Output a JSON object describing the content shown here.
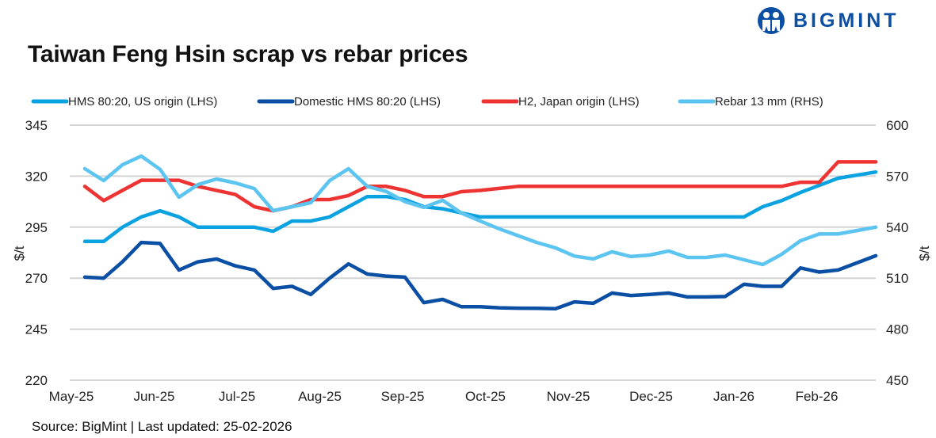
{
  "brand": {
    "name": "BIGMINT"
  },
  "chart_data": {
    "type": "line",
    "title": "Taiwan Feng Hsin scrap vs rebar prices",
    "source": "Source: BigMint |  Last updated: 25-02-2026",
    "ylabel_left": "$/t",
    "ylabel_right": "$/t",
    "ylim_left": [
      220,
      345
    ],
    "ylim_right": [
      450,
      600
    ],
    "yticks_left": [
      "345",
      "320",
      "295",
      "270",
      "245",
      "220"
    ],
    "yticks_right": [
      "600",
      "570",
      "540",
      "510",
      "480",
      "450"
    ],
    "xticks": [
      "May-25",
      "Jun-25",
      "Jul-25",
      "Aug-25",
      "Sep-25",
      "Oct-25",
      "Nov-25",
      "Dec-25",
      "Jan-26",
      "Feb-26"
    ],
    "grid": true,
    "legend_position": "top",
    "series": [
      {
        "name": "HMS 80:20, US origin (LHS)",
        "axis": "left",
        "color": "#0aa2e0",
        "values": [
          288,
          288,
          295,
          300,
          303,
          300,
          295,
          295,
          295,
          295,
          293,
          298,
          298,
          300,
          305,
          310,
          310,
          308.5,
          305,
          304,
          302,
          300,
          300,
          300,
          300,
          300,
          300,
          300,
          300,
          300,
          300,
          300,
          300,
          300,
          300,
          300,
          305,
          308,
          312,
          315.5,
          319,
          320.5,
          322
        ]
      },
      {
        "name": "Domestic HMS 80:20 (LHS)",
        "axis": "left",
        "color": "#0a4fa3",
        "values": [
          270.5,
          270,
          278,
          287.5,
          287,
          274,
          278,
          279.4,
          276,
          274,
          265,
          266,
          262,
          270,
          277,
          272,
          271,
          270.5,
          258,
          259.6,
          256,
          256,
          255.5,
          255.3,
          255.2,
          255,
          258.4,
          257.7,
          262.7,
          261.5,
          262,
          262.7,
          260.8,
          260.8,
          261,
          267,
          266,
          266,
          275,
          273,
          274,
          277.5,
          281
        ]
      },
      {
        "name": "H2, Japan origin (LHS)",
        "axis": "left",
        "color": "#ee3432",
        "values": [
          315,
          308,
          313,
          318,
          318,
          318,
          315,
          313,
          311,
          305,
          303,
          305,
          308.5,
          308.5,
          310.5,
          315,
          315,
          313,
          310,
          310,
          312.4,
          313,
          314,
          315,
          315,
          315,
          315,
          315,
          315,
          315,
          315,
          315,
          315,
          315,
          315,
          315,
          315,
          315,
          317,
          317,
          327,
          327,
          327
        ]
      },
      {
        "name": "Rebar 13 mm (RHS)",
        "axis": "right",
        "color": "#5bc4f1",
        "values": [
          574.4,
          567.4,
          576.7,
          581.8,
          574,
          557.6,
          565,
          568.3,
          566,
          562.7,
          549.7,
          552,
          554.4,
          567.4,
          574.4,
          564,
          561,
          555,
          551.6,
          555.8,
          548.3,
          543.6,
          539,
          535,
          531,
          527.8,
          523,
          521.3,
          525.5,
          522.7,
          523.6,
          526,
          522.2,
          522.2,
          523.6,
          520.8,
          518,
          524,
          532,
          536,
          536,
          538,
          540
        ]
      }
    ]
  }
}
